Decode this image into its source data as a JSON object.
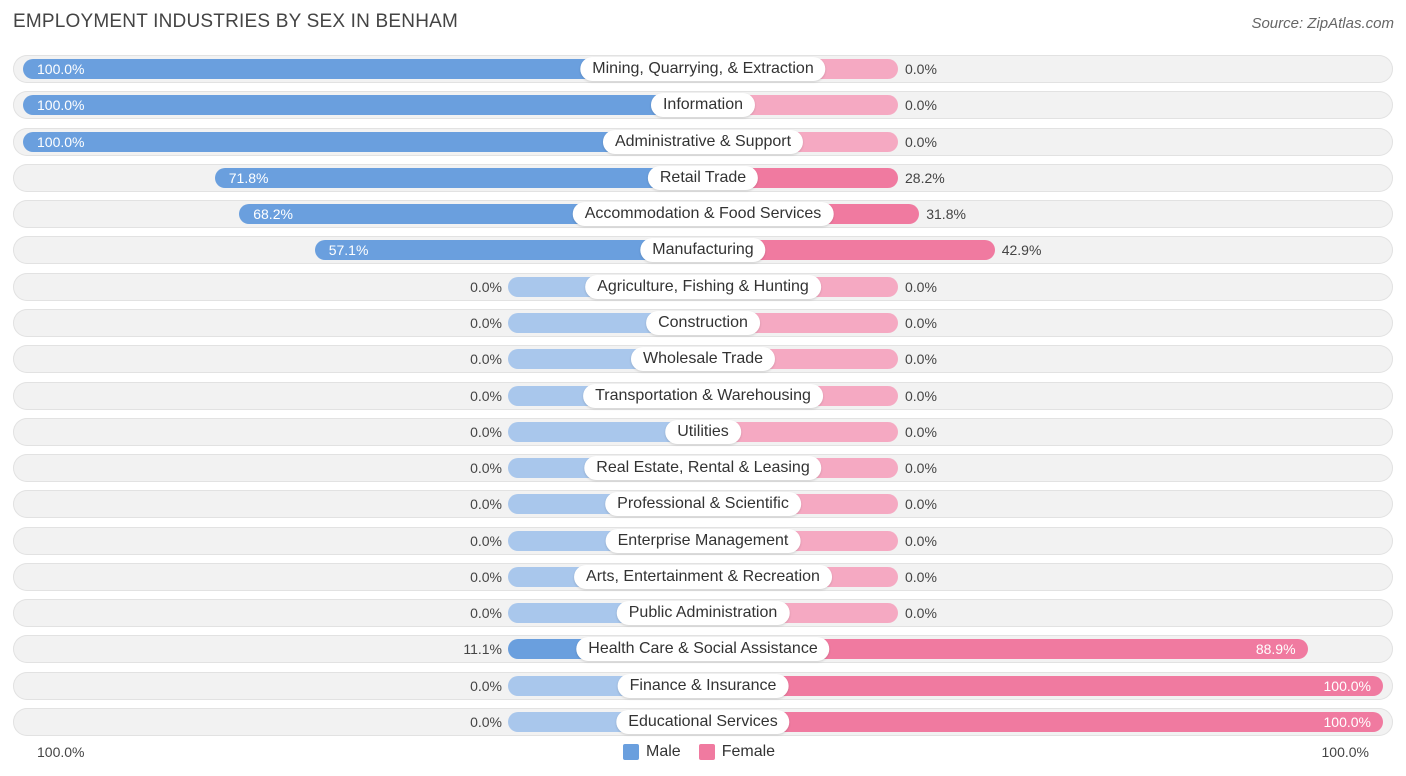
{
  "title": "EMPLOYMENT INDUSTRIES BY SEX IN BENHAM",
  "source": "Source: ZipAtlas.com",
  "legend": {
    "male": "Male",
    "female": "Female"
  },
  "axis": {
    "left": "100.0%",
    "right": "100.0%"
  },
  "colors": {
    "male": "#6a9fde",
    "male_light": "#a9c7ec",
    "female": "#f07aa0",
    "female_light": "#f5a9c2"
  },
  "chart_data": {
    "type": "bar",
    "title": "EMPLOYMENT INDUSTRIES BY SEX IN BENHAM",
    "categories": [
      "Mining, Quarrying, & Extraction",
      "Information",
      "Administrative & Support",
      "Retail Trade",
      "Accommodation & Food Services",
      "Manufacturing",
      "Agriculture, Fishing & Hunting",
      "Construction",
      "Wholesale Trade",
      "Transportation & Warehousing",
      "Utilities",
      "Real Estate, Rental & Leasing",
      "Professional & Scientific",
      "Enterprise Management",
      "Arts, Entertainment & Recreation",
      "Public Administration",
      "Health Care & Social Assistance",
      "Finance & Insurance",
      "Educational Services"
    ],
    "series": [
      {
        "name": "Male",
        "values": [
          100.0,
          100.0,
          100.0,
          71.8,
          68.2,
          57.1,
          0.0,
          0.0,
          0.0,
          0.0,
          0.0,
          0.0,
          0.0,
          0.0,
          0.0,
          0.0,
          11.1,
          0.0,
          0.0
        ]
      },
      {
        "name": "Female",
        "values": [
          0.0,
          0.0,
          0.0,
          28.2,
          31.8,
          42.9,
          0.0,
          0.0,
          0.0,
          0.0,
          0.0,
          0.0,
          0.0,
          0.0,
          0.0,
          0.0,
          88.9,
          100.0,
          100.0
        ]
      }
    ],
    "value_labels": {
      "male": [
        "100.0%",
        "100.0%",
        "100.0%",
        "71.8%",
        "68.2%",
        "57.1%",
        "0.0%",
        "0.0%",
        "0.0%",
        "0.0%",
        "0.0%",
        "0.0%",
        "0.0%",
        "0.0%",
        "0.0%",
        "0.0%",
        "11.1%",
        "0.0%",
        "0.0%"
      ],
      "female": [
        "0.0%",
        "0.0%",
        "0.0%",
        "28.2%",
        "31.8%",
        "42.9%",
        "0.0%",
        "0.0%",
        "0.0%",
        "0.0%",
        "0.0%",
        "0.0%",
        "0.0%",
        "0.0%",
        "0.0%",
        "0.0%",
        "88.9%",
        "100.0%",
        "100.0%"
      ]
    },
    "xlim": [
      -100,
      100
    ],
    "legend_position": "bottom-center"
  }
}
